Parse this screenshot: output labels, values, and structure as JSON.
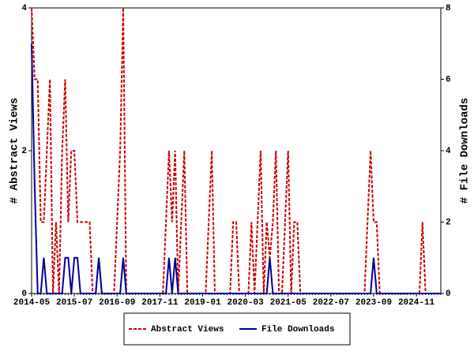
{
  "chart_data": {
    "type": "line",
    "categories": [
      "2014-05",
      null,
      null,
      null,
      null,
      null,
      null,
      null,
      null,
      null,
      null,
      null,
      null,
      null,
      "2015-07",
      null,
      null,
      null,
      null,
      null,
      null,
      null,
      null,
      null,
      null,
      null,
      null,
      null,
      "2016-09",
      null,
      null,
      null,
      null,
      null,
      null,
      null,
      null,
      null,
      null,
      null,
      null,
      null,
      "2017-11",
      null,
      null,
      null,
      null,
      null,
      null,
      null,
      null,
      null,
      null,
      null,
      null,
      null,
      "2019-01",
      null,
      null,
      null,
      null,
      null,
      null,
      null,
      null,
      null,
      null,
      null,
      null,
      null,
      "2020-03",
      null,
      null,
      null,
      null,
      null,
      null,
      null,
      null,
      null,
      null,
      null,
      null,
      null,
      "2021-05",
      null,
      null,
      null,
      null,
      null,
      null,
      null,
      null,
      null,
      null,
      null,
      null,
      null,
      "2022-07",
      null,
      null,
      null,
      null,
      null,
      null,
      null,
      null,
      null,
      null,
      null,
      null,
      null,
      "2023-09",
      null,
      null,
      null,
      null,
      null,
      null,
      null,
      null,
      null,
      null,
      null,
      null,
      null,
      "2024-11",
      null,
      null,
      null,
      null,
      null,
      null,
      null,
      null
    ],
    "series": [
      {
        "name": "Abstract Views",
        "color": "#cc0000",
        "dash": true,
        "values": [
          4,
          3,
          3,
          1,
          1,
          2,
          3,
          0,
          1,
          0,
          2,
          3,
          1,
          2,
          2,
          1,
          1,
          1,
          1,
          1,
          0,
          0,
          0.5,
          0,
          0,
          0,
          0,
          0,
          1,
          2,
          4,
          0,
          0,
          0,
          0,
          0,
          0,
          0,
          0,
          0,
          0,
          0,
          0,
          0,
          1,
          2,
          1,
          2,
          0,
          1,
          2,
          0,
          0,
          0,
          0,
          0,
          0,
          0,
          1,
          2,
          0,
          0,
          0,
          0,
          0,
          0,
          1,
          1,
          0,
          0,
          0,
          0,
          1,
          0,
          1,
          2,
          0,
          1,
          0.5,
          1,
          2,
          0,
          0,
          1,
          2,
          0,
          1,
          1,
          0,
          0,
          0,
          0,
          0,
          0,
          0,
          0,
          0,
          0,
          0,
          0,
          0,
          0,
          0,
          0,
          0,
          0,
          0,
          0,
          0,
          0,
          1,
          2,
          1,
          1,
          0,
          0,
          0,
          0,
          0,
          0,
          0,
          0,
          0,
          0,
          0,
          0,
          0,
          0,
          1,
          0,
          0,
          0,
          0,
          0,
          0
        ]
      },
      {
        "name": "File Downloads",
        "color": "#000099",
        "dash": false,
        "axis": "y2",
        "values": [
          7,
          3,
          0,
          0,
          1,
          0,
          0,
          0,
          0,
          0,
          0,
          1,
          1,
          0,
          1,
          1,
          0,
          0,
          0,
          0,
          0,
          0,
          1,
          0,
          0,
          0,
          0,
          0,
          0,
          0,
          1,
          0,
          0,
          0,
          0,
          0,
          0,
          0,
          0,
          0,
          0,
          0,
          0,
          0,
          0,
          1,
          0,
          1,
          0,
          0,
          0,
          0,
          0,
          0,
          0,
          0,
          0,
          0,
          0,
          0,
          0,
          0,
          0,
          0,
          0,
          0,
          0,
          0,
          0,
          0,
          0,
          0,
          0,
          0,
          0,
          0,
          0,
          0,
          1,
          0,
          0,
          0,
          0,
          0,
          0,
          0,
          0,
          0,
          0,
          0,
          0,
          0,
          0,
          0,
          0,
          0,
          0,
          0,
          0,
          0,
          0,
          0,
          0,
          0,
          0,
          0,
          0,
          0,
          0,
          0,
          0,
          0,
          1,
          0,
          0,
          0,
          0,
          0,
          0,
          0,
          0,
          0,
          0,
          0,
          0,
          0,
          0,
          0,
          0,
          0,
          0,
          0,
          0,
          0,
          0
        ]
      }
    ],
    "ylabel": "# Abstract Views",
    "y2label": "# File Downloads",
    "ylim": [
      0,
      4
    ],
    "yticks": [
      0,
      2,
      4
    ],
    "y2lim": [
      0,
      8
    ],
    "y2ticks": [
      0,
      2,
      4,
      6,
      8
    ],
    "legend": "bottom"
  }
}
